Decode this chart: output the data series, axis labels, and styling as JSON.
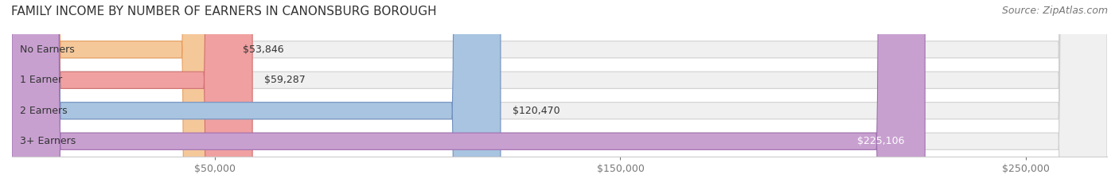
{
  "title": "FAMILY INCOME BY NUMBER OF EARNERS IN CANONSBURG BOROUGH",
  "source": "Source: ZipAtlas.com",
  "categories": [
    "No Earners",
    "1 Earner",
    "2 Earners",
    "3+ Earners"
  ],
  "values": [
    53846,
    59287,
    120470,
    225106
  ],
  "bar_colors": [
    "#f5c89a",
    "#f0a0a0",
    "#a8c4e0",
    "#c8a0d0"
  ],
  "bar_edge_colors": [
    "#e8a060",
    "#d07070",
    "#7090c0",
    "#a070b0"
  ],
  "label_colors": [
    "#555555",
    "#555555",
    "#555555",
    "#ffffff"
  ],
  "bg_bar_color": "#f0f0f0",
  "bg_bar_edge": "#d0d0d0",
  "tick_labels": [
    "$50,000",
    "$150,000",
    "$250,000"
  ],
  "tick_values": [
    50000,
    150000,
    250000
  ],
  "xlim": [
    0,
    270000
  ],
  "bar_height": 0.55,
  "title_fontsize": 11,
  "source_fontsize": 9,
  "label_fontsize": 9,
  "category_fontsize": 9,
  "tick_fontsize": 9
}
